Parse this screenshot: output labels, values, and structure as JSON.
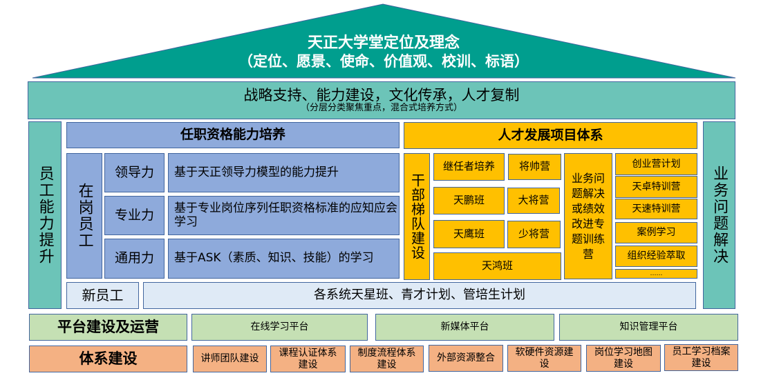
{
  "roof": {
    "title": "天正大学堂定位及理念",
    "subtitle": "（定位、愿景、使命、价值观、校训、标语）"
  },
  "band": {
    "title": "战略支持、能力建设，文化传承，人才复制",
    "subtitle": "（分层分类聚焦重点，混合式培养方式）"
  },
  "pillars": {
    "left": "员工能力提升",
    "right": "业务问题解决"
  },
  "qualification": {
    "header": "任职资格能力培养",
    "group": "在岗员工",
    "rows": [
      {
        "label": "领导力",
        "desc": "基于天正领导力模型的能力提升"
      },
      {
        "label": "专业力",
        "desc": "基于专业岗位序列任职资格标准的应知应会学习"
      },
      {
        "label": "通用力",
        "desc": "基于ASK（素质、知识、技能）的学习"
      }
    ],
    "new_staff": "新员工",
    "new_staff_desc": "各系统天星班、青才计划、管培生计划"
  },
  "talent": {
    "header": "人才发展项目体系",
    "cadre": "干部梯队建设",
    "programs": [
      "继任者培养",
      "将帅营",
      "天鹏班",
      "大将营",
      "天鹰班",
      "少将营",
      "天鸿班"
    ],
    "business": "业务问题解决或绩效改进专题训练营",
    "camps": [
      "创业营计划",
      "天卓特训营",
      "天速特训营",
      "案例学习",
      "组织经验萃取",
      "……"
    ]
  },
  "platform": {
    "label": "平台建设及运营",
    "items": [
      "在线学习平台",
      "新媒体平台",
      "知识管理平台"
    ]
  },
  "system": {
    "label": "体系建设",
    "items": [
      "讲师团队建设",
      "课程认证体系建设",
      "制度流程体系建设",
      "外部资源整合",
      "软硬件资源建设",
      "岗位学习地图建设",
      "员工学习档案建设"
    ]
  },
  "colors": {
    "roof": "#009e8e",
    "teal": "#6cc4b8",
    "blue": "#8eaadb",
    "yellow": "#ffc000",
    "green": "#c5e0b4",
    "orange": "#f4b183",
    "border": "#41659e"
  }
}
